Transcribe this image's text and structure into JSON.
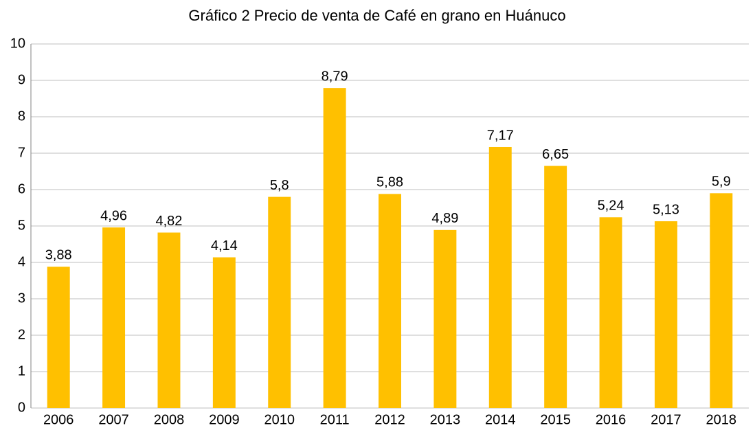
{
  "chart_data": {
    "type": "bar",
    "title": "Gráfico 2 Precio de venta de Café en grano en Huánuco",
    "categories": [
      "2006",
      "2007",
      "2008",
      "2009",
      "2010",
      "2011",
      "2012",
      "2013",
      "2014",
      "2015",
      "2016",
      "2017",
      "2018"
    ],
    "values": [
      3.88,
      4.96,
      4.82,
      4.14,
      5.8,
      8.79,
      5.88,
      4.89,
      7.17,
      6.65,
      5.24,
      5.13,
      5.9
    ],
    "value_labels": [
      "3,88",
      "4,96",
      "4,82",
      "4,14",
      "5,8",
      "8,79",
      "5,88",
      "4,89",
      "7,17",
      "6,65",
      "5,24",
      "5,13",
      "5,9"
    ],
    "color": "#ffc000",
    "ylim": [
      0,
      10
    ],
    "yticks": [
      0,
      1,
      2,
      3,
      4,
      5,
      6,
      7,
      8,
      9,
      10
    ],
    "grid": true
  }
}
